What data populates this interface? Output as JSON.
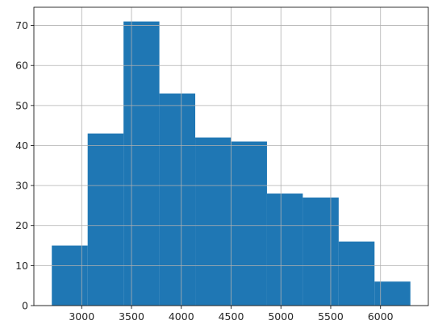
{
  "chart_data": {
    "type": "bar",
    "subtype": "histogram",
    "bin_edges": [
      2700,
      3060,
      3420,
      3780,
      4140,
      4500,
      4860,
      5220,
      5580,
      5940,
      6300
    ],
    "values": [
      15,
      43,
      71,
      53,
      42,
      41,
      28,
      27,
      16,
      6
    ],
    "xlim": [
      2520,
      6480
    ],
    "ylim": [
      0,
      74.55
    ],
    "xticks": [
      3000,
      3500,
      4000,
      4500,
      5000,
      5500,
      6000
    ],
    "yticks": [
      0,
      10,
      20,
      30,
      40,
      50,
      60,
      70
    ],
    "title": "",
    "xlabel": "",
    "ylabel": "",
    "grid": true,
    "bar_color": "#1f77b4"
  }
}
